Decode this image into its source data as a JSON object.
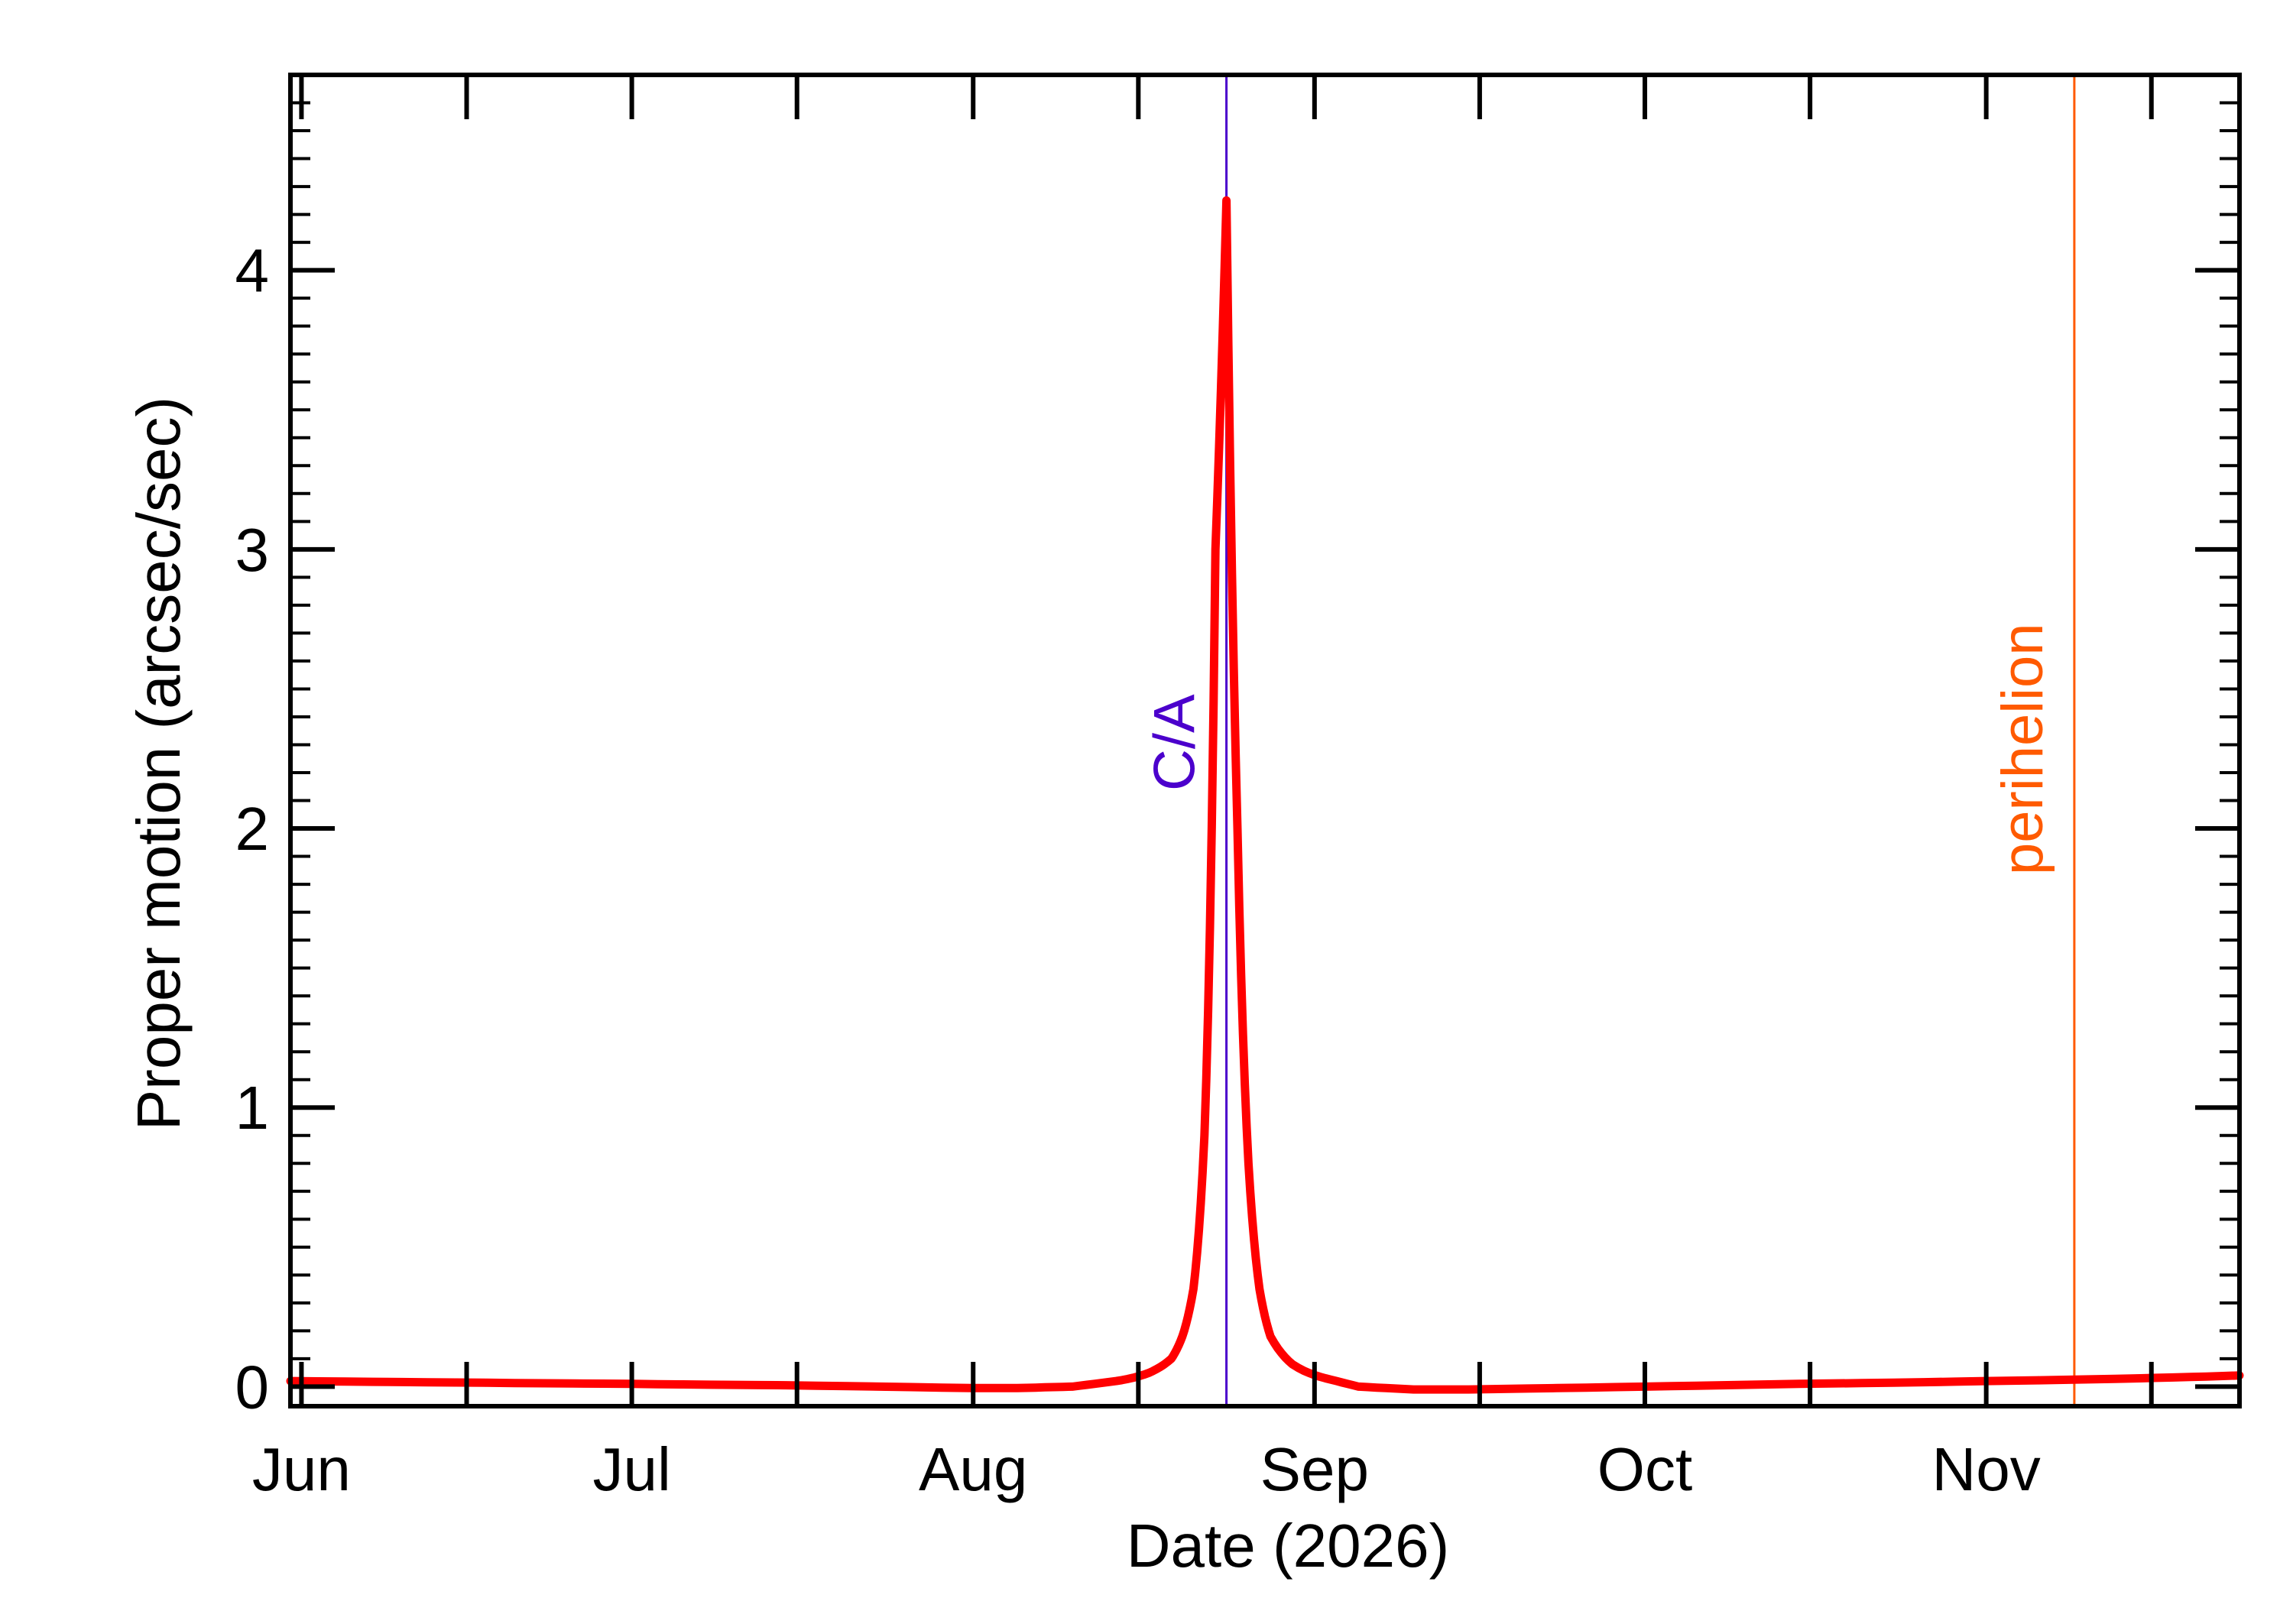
{
  "chart_data": {
    "type": "line",
    "xlabel": "Date (2026)",
    "ylabel": "Proper motion (arcsec/sec)",
    "xlim": [
      "2026-05-31",
      "2026-11-24"
    ],
    "ylim": [
      -0.07,
      4.7
    ],
    "x_tick_labels": [
      "Jun",
      "Jul",
      "Aug",
      "Sep",
      "Oct",
      "Nov"
    ],
    "x_tick_dates": [
      "2026-06-01",
      "2026-07-01",
      "2026-08-01",
      "2026-09-01",
      "2026-10-01",
      "2026-11-01"
    ],
    "y_ticks": [
      0,
      1,
      2,
      3,
      4
    ],
    "y_tick_labels": [
      "0",
      "1",
      "2",
      "3",
      "4"
    ],
    "series": [
      {
        "color": "#ff0000",
        "x": [
          "2026-05-31",
          "2026-06-15",
          "2026-07-01",
          "2026-07-15",
          "2026-08-01",
          "2026-08-05",
          "2026-08-10",
          "2026-08-14",
          "2026-08-17",
          "2026-08-19",
          "2026-08-20",
          "2026-08-21",
          "2026-08-22",
          "2026-08-23",
          "2026-08-24",
          "2026-08-25",
          "2026-08-26",
          "2026-08-27",
          "2026-08-28",
          "2026-08-30",
          "2026-09-02",
          "2026-09-05",
          "2026-09-10",
          "2026-09-15",
          "2026-10-01",
          "2026-10-15",
          "2026-11-01",
          "2026-11-15",
          "2026-11-24"
        ],
        "y": [
          0.02,
          0.015,
          0.01,
          0.005,
          -0.005,
          -0.005,
          0.0,
          0.02,
          0.05,
          0.1,
          0.18,
          0.35,
          0.9,
          3.0,
          4.25,
          2.0,
          0.8,
          0.35,
          0.18,
          0.08,
          0.03,
          0.0,
          -0.01,
          -0.01,
          0.0,
          0.01,
          0.02,
          0.03,
          0.04
        ]
      }
    ],
    "vlines": [
      {
        "date": "2026-08-24",
        "label": "C/A",
        "color": "#4b00cc"
      },
      {
        "date": "2026-11-09",
        "label": "perihelion",
        "color": "#ff5a00"
      }
    ]
  }
}
